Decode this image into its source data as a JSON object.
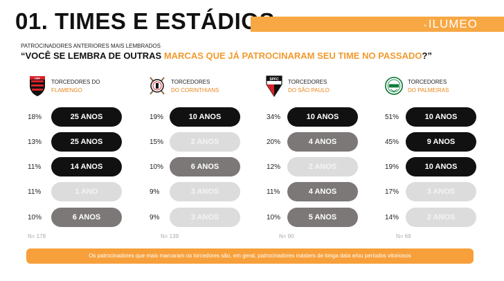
{
  "header": {
    "title": "01. TIMES E ESTÁDIOS",
    "brand": "ILUMEO",
    "brand_color": "#f7a743"
  },
  "subtitle": "PATROCINADORES ANTERIORES MAIS LEMBRADOS",
  "question": {
    "part1": "“VOCÊ SE LEMBRA DE OUTRAS ",
    "highlight": "MARCAS QUE JÁ PATROCINARAM SEU TIME NO PASSADO",
    "part2": "?”",
    "highlight_color": "#f29a2e"
  },
  "teams": [
    {
      "line1": "TORCEDORES DO",
      "name": "FLAMENGO",
      "crest_icon": "flamengo-crest-icon",
      "n": "N= 178",
      "rows": [
        {
          "pct": "18%",
          "label": "25 ANOS",
          "tone": "black"
        },
        {
          "pct": "13%",
          "label": "25 ANOS",
          "tone": "black"
        },
        {
          "pct": "11%",
          "label": "14 ANOS",
          "tone": "black"
        },
        {
          "pct": "11%",
          "label": "1 ANO",
          "tone": "lgray"
        },
        {
          "pct": "10%",
          "label": "6 ANOS",
          "tone": "dgray"
        }
      ]
    },
    {
      "line1": "TORCEDORES",
      "name": "DO CORINTHIANS",
      "crest_icon": "corinthians-crest-icon",
      "n": "N= 139",
      "rows": [
        {
          "pct": "19%",
          "label": "10 ANOS",
          "tone": "black"
        },
        {
          "pct": "15%",
          "label": "2 ANOS",
          "tone": "lgray"
        },
        {
          "pct": "10%",
          "label": "6 ANOS",
          "tone": "dgray"
        },
        {
          "pct": "9%",
          "label": "3 ANOS",
          "tone": "lgray"
        },
        {
          "pct": "9%",
          "label": "3 ANOS",
          "tone": "lgray"
        }
      ]
    },
    {
      "line1": "TORCEDORES",
      "name": "DO SÃO PAULO",
      "crest_icon": "sao-paulo-crest-icon",
      "crest_text": "SPFC",
      "n": "N= 90",
      "rows": [
        {
          "pct": "34%",
          "label": "10 ANOS",
          "tone": "black"
        },
        {
          "pct": "20%",
          "label": "4 ANOS",
          "tone": "dgray"
        },
        {
          "pct": "12%",
          "label": "2 ANOS",
          "tone": "lgray"
        },
        {
          "pct": "11%",
          "label": "4 ANOS",
          "tone": "dgray"
        },
        {
          "pct": "10%",
          "label": "5 ANOS",
          "tone": "dgray"
        }
      ]
    },
    {
      "line1": "TORCEDORES",
      "name": "DO PALMEIRAS",
      "crest_icon": "palmeiras-crest-icon",
      "n": "N= 69",
      "rows": [
        {
          "pct": "51%",
          "label": "10 ANOS",
          "tone": "black"
        },
        {
          "pct": "45%",
          "label": "9 ANOS",
          "tone": "black"
        },
        {
          "pct": "19%",
          "label": "10 ANOS",
          "tone": "black"
        },
        {
          "pct": "17%",
          "label": "3 ANOS",
          "tone": "lgray"
        },
        {
          "pct": "14%",
          "label": "2 ANOS",
          "tone": "lgray"
        }
      ]
    }
  ],
  "footer": "Os patrocinadores que mais marcaram os torcedores são, em geral, patrocinadores másters de longa data e/ou períodos vitoriosos"
}
